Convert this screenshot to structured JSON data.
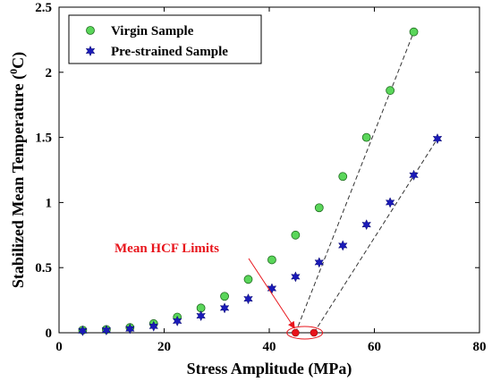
{
  "chart_data": {
    "type": "scatter",
    "xlabel": "Stress Amplitude (MPa)",
    "ylabel": "Stabilized Mean Temperature (°C)",
    "ylabel_parts": {
      "prefix": "Stabilized Mean Temperature (",
      "superscript": "0",
      "suffix": "C)"
    },
    "xlim": [
      0,
      80
    ],
    "ylim": [
      0,
      2.5
    ],
    "xticks": [
      "0",
      "20",
      "40",
      "60",
      "80"
    ],
    "yticks": [
      "0",
      "0.5",
      "1",
      "1.5",
      "2",
      "2.5"
    ],
    "grid": false,
    "legend_position": "top-left",
    "series": [
      {
        "name": "Virgin Sample",
        "marker": "circle",
        "color": "#5ad65a",
        "x": [
          4.5,
          9,
          13.5,
          18,
          22.5,
          27,
          31.5,
          36,
          40.5,
          45,
          49.5,
          54,
          58.5,
          63,
          67.5
        ],
        "y": [
          0.02,
          0.025,
          0.04,
          0.07,
          0.12,
          0.19,
          0.28,
          0.41,
          0.56,
          0.75,
          0.96,
          1.2,
          1.5,
          1.86,
          2.31
        ]
      },
      {
        "name": "Pre-strained Sample",
        "marker": "star",
        "color": "#1a1ab8",
        "x": [
          4.5,
          9,
          13.5,
          18,
          22.5,
          27,
          31.5,
          36,
          40.5,
          45,
          49.5,
          54,
          58.5,
          63,
          67.5,
          72
        ],
        "y": [
          0.015,
          0.02,
          0.03,
          0.05,
          0.09,
          0.13,
          0.19,
          0.26,
          0.34,
          0.43,
          0.54,
          0.67,
          0.83,
          1.0,
          1.21,
          1.49
        ]
      }
    ],
    "fit_lines": [
      {
        "series": "Virgin Sample",
        "x": [
          45,
          67.5
        ],
        "y": [
          0,
          2.31
        ]
      },
      {
        "series": "Pre-strained Sample",
        "x": [
          48.5,
          72
        ],
        "y": [
          0,
          1.49
        ]
      }
    ],
    "hcf_limits": {
      "x": [
        45,
        48.5
      ],
      "y": [
        0,
        0
      ],
      "color": "#e8141b"
    },
    "annotation": {
      "text": "Mean HCF Limits",
      "color": "#e8141b",
      "x": 36,
      "y": 0.62
    }
  }
}
